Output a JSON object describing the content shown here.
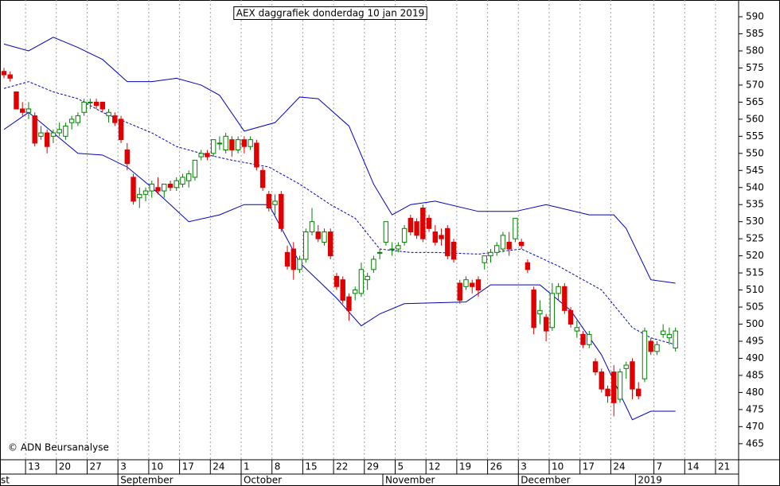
{
  "chart_data": {
    "type": "candlestick",
    "title": "AEX daggrafiek donderdag 10 jan 2019",
    "annotation": "© ADN Beursanalyse",
    "ylim": [
      460.3,
      594.9
    ],
    "yticks": [
      465,
      470,
      475,
      480,
      485,
      490,
      495,
      500,
      505,
      510,
      515,
      520,
      525,
      530,
      535,
      540,
      545,
      550,
      555,
      560,
      565,
      570,
      575,
      580,
      585,
      590
    ],
    "xlim": [
      -0.646,
      119.25
    ],
    "xticks": [
      {
        "value": 4,
        "label": "13"
      },
      {
        "value": 9,
        "label": "20"
      },
      {
        "value": 14,
        "label": "27"
      },
      {
        "value": 19,
        "label": "3"
      },
      {
        "value": 24,
        "label": "10"
      },
      {
        "value": 29,
        "label": "17"
      },
      {
        "value": 34,
        "label": "24"
      },
      {
        "value": 39,
        "label": "1"
      },
      {
        "value": 44,
        "label": "8"
      },
      {
        "value": 49,
        "label": "15"
      },
      {
        "value": 54,
        "label": "22"
      },
      {
        "value": 59,
        "label": "29"
      },
      {
        "value": 64,
        "label": "5"
      },
      {
        "value": 69,
        "label": "12"
      },
      {
        "value": 74,
        "label": "19"
      },
      {
        "value": 79,
        "label": "26"
      },
      {
        "value": 84,
        "label": "3"
      },
      {
        "value": 89,
        "label": "10"
      },
      {
        "value": 94,
        "label": "17"
      },
      {
        "value": 99,
        "label": "24"
      },
      {
        "value": 106,
        "label": "7"
      },
      {
        "value": 111,
        "label": "14"
      },
      {
        "value": 116,
        "label": "21"
      }
    ],
    "month_ticks": [
      {
        "value": -4,
        "label": "st"
      },
      {
        "value": 19,
        "label": "September"
      },
      {
        "value": 39,
        "label": "October"
      },
      {
        "value": 62,
        "label": "November"
      },
      {
        "value": 84,
        "label": "December"
      },
      {
        "value": 103,
        "label": "2019"
      }
    ],
    "grid": true,
    "up_color": "#008000",
    "down_color": "#e00000",
    "open": [
      574,
      573,
      568,
      563,
      562,
      561,
      555,
      556,
      555,
      556,
      555,
      559,
      559,
      562,
      565,
      565,
      565,
      561,
      561,
      560,
      551,
      543,
      537,
      538,
      539,
      540,
      539,
      541,
      540,
      541,
      542,
      543,
      549,
      550,
      550,
      553,
      551,
      554,
      551,
      554,
      552,
      553,
      545,
      538,
      535,
      538,
      521,
      522,
      516,
      519,
      527,
      527,
      524,
      527,
      514,
      513,
      508,
      509,
      509,
      513,
      516,
      521,
      524,
      522,
      522,
      524,
      531,
      530,
      534,
      531,
      527,
      526,
      528,
      524,
      512,
      511,
      512,
      513,
      518,
      520,
      521,
      522,
      524,
      525,
      524,
      518,
      510,
      503,
      502,
      499,
      509,
      511,
      504,
      498,
      497,
      494,
      489,
      486,
      481,
      486,
      478,
      487,
      489,
      481,
      484,
      495,
      492,
      497,
      496,
      493
    ],
    "high": [
      575,
      574,
      568,
      565,
      565,
      562,
      558,
      557,
      557,
      559,
      559,
      561,
      562,
      566,
      566,
      566,
      565,
      563,
      562,
      561,
      553,
      544,
      540,
      540,
      542,
      543,
      541,
      542,
      543,
      544,
      545,
      548,
      551,
      551,
      554,
      555,
      556,
      555,
      555,
      555,
      555,
      554,
      546,
      539,
      538,
      539,
      523,
      524,
      520,
      528,
      534,
      529,
      528,
      528,
      515,
      514,
      509,
      511,
      518,
      515,
      520,
      522,
      530,
      524,
      524,
      529,
      532,
      531,
      535,
      532,
      529,
      528,
      529,
      525,
      513,
      514,
      513,
      514,
      520,
      522,
      524,
      527,
      527,
      531,
      525,
      519,
      511,
      507,
      503,
      512,
      512,
      512,
      505,
      501,
      498,
      498,
      490,
      487,
      482,
      488,
      487,
      489,
      490,
      483,
      499,
      496,
      495,
      500,
      499,
      499
    ],
    "low": [
      572,
      571,
      563,
      561,
      560,
      552,
      554,
      550,
      553,
      555,
      554,
      557,
      558,
      561,
      563,
      563,
      562,
      559,
      558,
      553,
      545,
      535,
      534,
      536,
      537,
      538,
      537,
      539,
      539,
      540,
      540,
      542,
      548,
      548,
      549,
      551,
      550,
      549,
      550,
      550,
      551,
      545,
      539,
      533,
      532,
      527,
      516,
      513,
      515,
      518,
      526,
      524,
      523,
      519,
      510,
      506,
      501,
      507,
      508,
      510,
      515,
      519,
      523,
      520,
      521,
      523,
      526,
      525,
      524,
      527,
      523,
      523,
      519,
      518,
      506,
      510,
      509,
      508,
      516,
      518,
      520,
      521,
      520,
      524,
      522,
      515,
      497,
      500,
      495,
      498,
      507,
      503,
      499,
      496,
      493,
      493,
      485,
      480,
      477,
      473,
      477,
      484,
      478,
      478,
      483,
      491,
      491,
      496,
      494,
      492
    ],
    "close": [
      573,
      572,
      563,
      562,
      563,
      553,
      556,
      552,
      556,
      557,
      558,
      560,
      561,
      565,
      565,
      564,
      563,
      562,
      559,
      554,
      547,
      536,
      538,
      539,
      541,
      539,
      541,
      540,
      542,
      543,
      544,
      548,
      550,
      549,
      554,
      553,
      555,
      551,
      554,
      552,
      554,
      546,
      540,
      534,
      536,
      528,
      517,
      516,
      519,
      527,
      530,
      525,
      527,
      520,
      511,
      507,
      504,
      510,
      516,
      514,
      519,
      521,
      530,
      522,
      523,
      528,
      527,
      526,
      525,
      528,
      524,
      525,
      520,
      519,
      507,
      513,
      511,
      510,
      520,
      521,
      523,
      526,
      522,
      531,
      523,
      516,
      499,
      504,
      498,
      509,
      511,
      504,
      500,
      499,
      494,
      497,
      486,
      481,
      479,
      477,
      486,
      488,
      481,
      479,
      498,
      492,
      494,
      498,
      497,
      498
    ],
    "bands": [
      {
        "color": "#0000c0",
        "dash": false,
        "x": [
          0,
          4,
          8,
          12,
          16,
          20,
          24,
          28,
          32,
          35,
          39,
          44,
          48,
          51,
          56,
          60,
          63,
          66,
          70,
          77,
          83,
          88,
          95,
          99,
          101,
          105,
          109
        ],
        "values": [
          582,
          580,
          584,
          581,
          577.5,
          571,
          571,
          572,
          570,
          567,
          556.5,
          559,
          566.5,
          566,
          558,
          541,
          532,
          535,
          536,
          533,
          533,
          535,
          532,
          532,
          528,
          513,
          512
        ]
      },
      {
        "color": "#0000c0",
        "dash": true,
        "x": [
          0,
          4,
          8,
          12,
          16,
          20,
          24,
          28,
          32,
          37,
          43,
          48,
          53,
          57,
          61,
          66,
          70,
          77,
          84,
          90,
          97,
          102,
          105,
          109
        ],
        "values": [
          569,
          571,
          568,
          566,
          562,
          559,
          556,
          552,
          550,
          548,
          546,
          541,
          535,
          531,
          522,
          521,
          521,
          520.5,
          522,
          517,
          510,
          499,
          496,
          494
        ]
      },
      {
        "color": "#0000c0",
        "dash": false,
        "x": [
          0,
          4,
          8,
          12,
          16,
          20,
          24,
          30,
          35,
          39,
          43,
          48,
          54,
          58,
          61,
          65,
          75,
          79,
          87,
          92,
          97,
          102,
          105,
          109
        ],
        "values": [
          557,
          562,
          556,
          550,
          549.5,
          546,
          540,
          530,
          532,
          535,
          535,
          518,
          507.6,
          499.5,
          503,
          506,
          506.5,
          511.5,
          511.5,
          504,
          491,
          472,
          474.5,
          474.5
        ]
      }
    ]
  }
}
